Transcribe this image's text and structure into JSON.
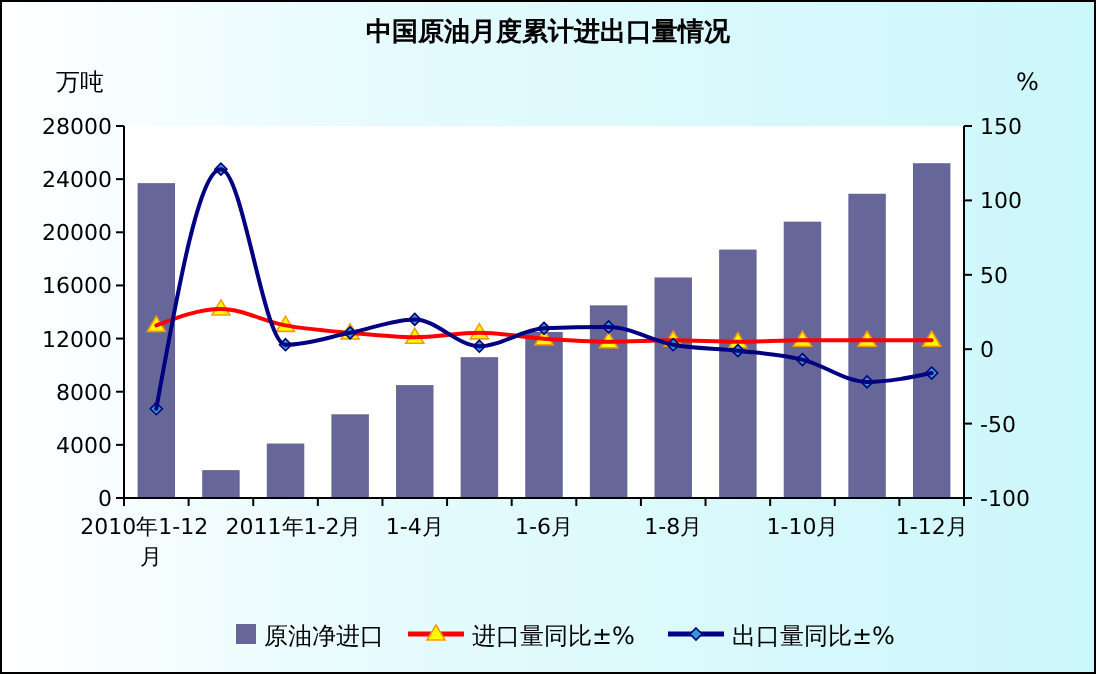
{
  "chart_data": {
    "type": "bar",
    "title": "中国原油月度累计进出口量情况",
    "ylabel": "万吨",
    "y2label": "%",
    "categories": [
      "2010年1-12月",
      null,
      "2011年1-2月",
      null,
      "1-4月",
      null,
      "1-6月",
      null,
      "1-8月",
      null,
      "1-10月",
      null,
      "1-12月"
    ],
    "series": [
      {
        "name": "原油净进口",
        "color": "#666699",
        "values": [
          23700,
          2100,
          4100,
          6300,
          8500,
          10600,
          12500,
          14500,
          16600,
          18700,
          20800,
          22900,
          25200
        ]
      },
      {
        "name": "进口量同比±%",
        "type": "line",
        "axis": "y2",
        "color": "#ff0000",
        "marker": "triangle",
        "values": [
          16,
          27,
          16,
          11,
          8,
          11,
          7,
          5,
          6,
          5,
          6,
          6,
          6
        ]
      },
      {
        "name": "出口量同比±%",
        "type": "line",
        "axis": "y2",
        "color": "#000080",
        "marker": "diamond",
        "values": [
          -40,
          121,
          3,
          11,
          20,
          2,
          14,
          15,
          3,
          -1,
          -7,
          -22,
          -16
        ]
      }
    ],
    "ylim": [
      0,
      28000
    ],
    "yticks": [
      0,
      4000,
      8000,
      12000,
      16000,
      20000,
      24000,
      28000
    ],
    "y2lim": [
      -100,
      150
    ],
    "y2ticks": [
      -100,
      -50,
      0,
      50,
      100,
      150
    ],
    "legend": "bottom",
    "grid": false
  }
}
